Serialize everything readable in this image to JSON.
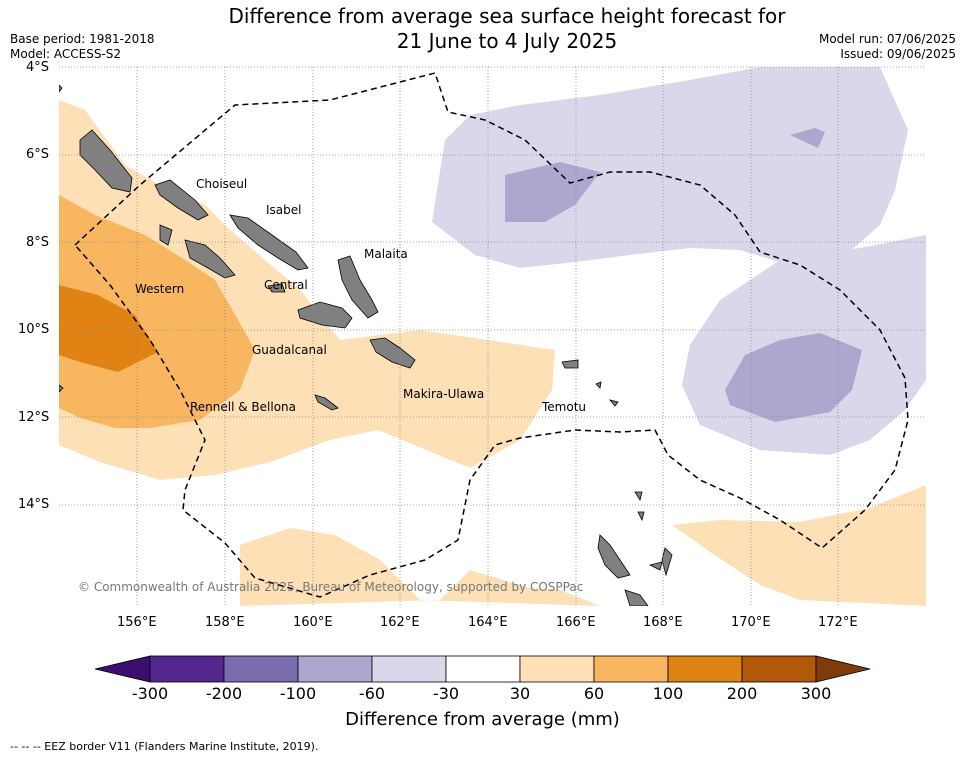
{
  "title_line1": "Difference from average sea surface height forecast for",
  "title_line2": "21 June to 4 July 2025",
  "base_period": "Base period: 1981-2018",
  "model": "Model: ACCESS-S2",
  "model_run": "Model run: 07/06/2025",
  "issued": "Issued: 09/06/2025",
  "lat_labels": [
    "4°S",
    "6°S",
    "8°S",
    "10°S",
    "12°S",
    "14°S"
  ],
  "lon_labels": [
    "156°E",
    "158°E",
    "160°E",
    "162°E",
    "164°E",
    "166°E",
    "168°E",
    "170°E",
    "172°E"
  ],
  "places": {
    "choiseul": "Choiseul",
    "isabel": "Isabel",
    "malaita": "Malaita",
    "western": "Western",
    "central": "Central",
    "guadalcanal": "Guadalcanal",
    "makira": "Makira-Ulawa",
    "temotu": "Temotu",
    "rennell": "Rennell & Bellona"
  },
  "copyright": "© Commonwealth of Australia 2025, Bureau of Meteorology, supported by COSPPac",
  "colorbar": {
    "ticks": [
      "-300",
      "-200",
      "-100",
      "-60",
      "-30",
      "30",
      "60",
      "100",
      "200",
      "300"
    ],
    "colors": [
      "#3b0f6f",
      "#54278f",
      "#7b6baf",
      "#aba7cf",
      "#d8d8ea",
      "#ffffff",
      "#fde0b6",
      "#f9b660",
      "#e08214",
      "#b35806",
      "#7f3b08"
    ],
    "label": "Difference from average (mm)"
  },
  "footnote": "--  --  -- EEZ border V11 (Flanders Marine Institute, 2019)."
}
